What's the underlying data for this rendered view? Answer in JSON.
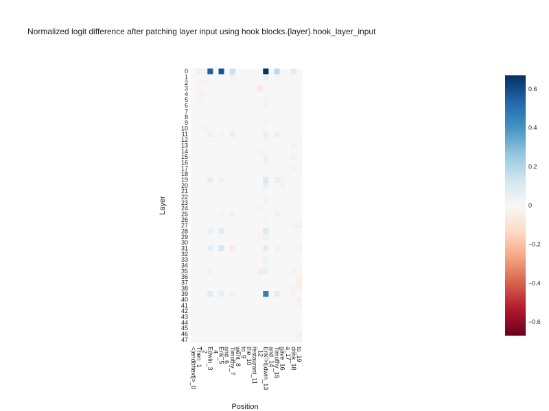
{
  "chart_data": {
    "type": "heatmap",
    "title": "Normalized logit difference after patching layer input using hook blocks.{layer}.hook_layer_input",
    "xlabel": "Position",
    "ylabel": "Layer",
    "x_labels": [
      "<|endoftext|>_0",
      "Then_1",
      "_2",
      "Edwin_3",
      "_4",
      "Erik_5",
      "and_6",
      "Timothy_7",
      "went_8",
      "to_9",
      "the_10",
      "restaurant_11",
      "_12",
      "Erik->Edwin_13",
      "and_14",
      "Timothy_15",
      "gave_16",
      "a_17",
      "drink_18",
      "to_19"
    ],
    "y_labels": [
      "0",
      "1",
      "2",
      "3",
      "4",
      "5",
      "6",
      "7",
      "8",
      "9",
      "10",
      "11",
      "12",
      "13",
      "14",
      "15",
      "16",
      "17",
      "18",
      "19",
      "20",
      "21",
      "22",
      "23",
      "24",
      "25",
      "26",
      "27",
      "28",
      "29",
      "30",
      "31",
      "32",
      "33",
      "34",
      "35",
      "36",
      "37",
      "38",
      "39",
      "40",
      "41",
      "42",
      "43",
      "44",
      "45",
      "46",
      "47"
    ],
    "zrange": [
      -0.67,
      0.67
    ],
    "colorscale": "RdBu",
    "colorbar_ticks": [
      "0.6",
      "0.4",
      "0.2",
      "0",
      "−0.2",
      "−0.4",
      "−0.6"
    ],
    "colorbar_tick_values": [
      0.6,
      0.4,
      0.2,
      0,
      -0.2,
      -0.4,
      -0.6
    ],
    "cells": [
      [
        0,
        1,
        -0.04
      ],
      [
        0,
        2,
        -0.02
      ],
      [
        0,
        3,
        0.55
      ],
      [
        0,
        5,
        0.58
      ],
      [
        0,
        7,
        0.15
      ],
      [
        0,
        13,
        0.67
      ],
      [
        0,
        15,
        0.18
      ],
      [
        0,
        18,
        0.08
      ],
      [
        1,
        7,
        0.03
      ],
      [
        1,
        13,
        0.05
      ],
      [
        1,
        15,
        0.02
      ],
      [
        2,
        1,
        -0.02
      ],
      [
        2,
        2,
        0.02
      ],
      [
        3,
        12,
        -0.07
      ],
      [
        3,
        1,
        -0.02
      ],
      [
        4,
        1,
        -0.03
      ],
      [
        4,
        2,
        -0.02
      ],
      [
        5,
        1,
        -0.02
      ],
      [
        5,
        13,
        0.02
      ],
      [
        6,
        13,
        0.02
      ],
      [
        9,
        13,
        0.02
      ],
      [
        10,
        2,
        0.02
      ],
      [
        11,
        3,
        0.04
      ],
      [
        11,
        5,
        -0.02
      ],
      [
        11,
        7,
        0.06
      ],
      [
        11,
        13,
        0.06
      ],
      [
        11,
        15,
        0.05
      ],
      [
        12,
        13,
        0.02
      ],
      [
        13,
        18,
        0.02
      ],
      [
        14,
        12,
        0.02
      ],
      [
        15,
        13,
        0.04
      ],
      [
        15,
        18,
        0.03
      ],
      [
        16,
        13,
        0.03
      ],
      [
        17,
        18,
        0.02
      ],
      [
        19,
        3,
        0.07
      ],
      [
        19,
        5,
        0.04
      ],
      [
        19,
        13,
        0.1
      ],
      [
        19,
        15,
        0.05
      ],
      [
        19,
        16,
        -0.02
      ],
      [
        20,
        13,
        0.06
      ],
      [
        20,
        16,
        0.02
      ],
      [
        22,
        13,
        0.02
      ],
      [
        23,
        13,
        0.02
      ],
      [
        24,
        12,
        0.02
      ],
      [
        25,
        7,
        0.04
      ],
      [
        25,
        5,
        0.02
      ],
      [
        25,
        15,
        0.03
      ],
      [
        26,
        13,
        0.02
      ],
      [
        27,
        19,
        -0.04
      ],
      [
        27,
        18,
        -0.02
      ],
      [
        28,
        3,
        0.05
      ],
      [
        28,
        5,
        0.08
      ],
      [
        28,
        13,
        0.1
      ],
      [
        29,
        12,
        -0.03
      ],
      [
        29,
        13,
        0.04
      ],
      [
        31,
        3,
        0.07
      ],
      [
        31,
        5,
        0.12
      ],
      [
        31,
        7,
        -0.06
      ],
      [
        31,
        13,
        0.08
      ],
      [
        31,
        15,
        -0.04
      ],
      [
        31,
        19,
        0.03
      ],
      [
        33,
        13,
        0.04
      ],
      [
        34,
        13,
        0.02
      ],
      [
        35,
        3,
        0.03
      ],
      [
        35,
        12,
        -0.06
      ],
      [
        35,
        13,
        0.05
      ],
      [
        35,
        18,
        0.02
      ],
      [
        36,
        19,
        -0.02
      ],
      [
        37,
        19,
        -0.04
      ],
      [
        38,
        19,
        -0.03
      ],
      [
        38,
        18,
        -0.02
      ],
      [
        39,
        3,
        0.08
      ],
      [
        39,
        5,
        0.06
      ],
      [
        39,
        7,
        0.04
      ],
      [
        39,
        13,
        0.46
      ],
      [
        39,
        15,
        0.07
      ],
      [
        39,
        18,
        0.02
      ],
      [
        40,
        19,
        -0.04
      ],
      [
        41,
        19,
        -0.02
      ],
      [
        46,
        19,
        0.03
      ],
      [
        47,
        19,
        0.02
      ]
    ]
  }
}
